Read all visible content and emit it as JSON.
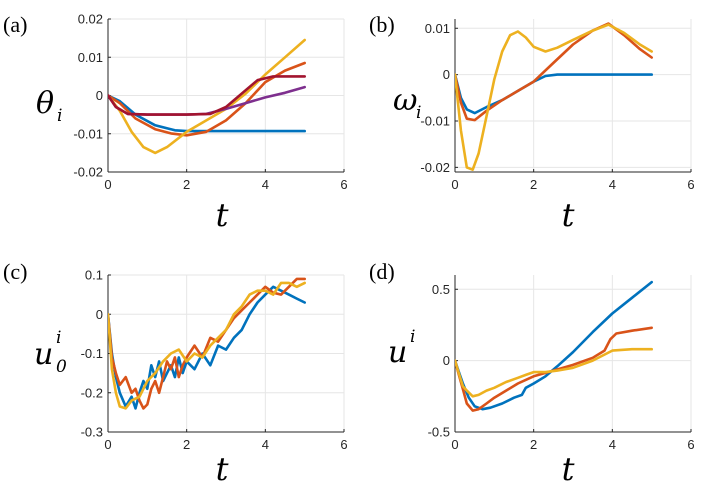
{
  "figure": {
    "panels": [
      {
        "letter": "(a)",
        "ylabel": "θ",
        "ylabel_sub": "i",
        "ylabel_sup": "",
        "xlabel": "t"
      },
      {
        "letter": "(b)",
        "ylabel": "ω",
        "ylabel_sub": "i",
        "ylabel_sup": "",
        "xlabel": "t"
      },
      {
        "letter": "(c)",
        "ylabel": "u",
        "ylabel_sub": "0",
        "ylabel_sup": "i",
        "xlabel": "t"
      },
      {
        "letter": "(d)",
        "ylabel": "u",
        "ylabel_sub": "",
        "ylabel_sup": "i",
        "xlabel": "t"
      }
    ]
  },
  "chart_data": [
    {
      "type": "line",
      "title": "",
      "xlabel": "t",
      "ylabel": "θ_i",
      "xlim": [
        0,
        6
      ],
      "ylim": [
        -0.02,
        0.02
      ],
      "xticks": [
        0,
        2,
        4,
        6
      ],
      "xtick_labels": [
        "0",
        "2",
        "4",
        "6"
      ],
      "yticks": [
        -0.02,
        -0.01,
        0,
        0.01,
        0.02
      ],
      "ytick_labels": [
        "-0.02",
        "-0.01",
        "0",
        "0.01",
        "0.02"
      ],
      "grid": true,
      "series": [
        {
          "name": "blue",
          "color": "#0072BD",
          "x": [
            0,
            0.3,
            0.7,
            1.2,
            1.7,
            2.0,
            2.5,
            3.0,
            4.0,
            5.0
          ],
          "y": [
            0,
            -0.0015,
            -0.005,
            -0.0078,
            -0.0091,
            -0.0093,
            -0.0093,
            -0.0093,
            -0.0093,
            -0.0093
          ]
        },
        {
          "name": "red",
          "color": "#D95319",
          "x": [
            0,
            0.3,
            0.7,
            1.2,
            1.6,
            2.0,
            2.5,
            3.0,
            3.5,
            4.0,
            4.5,
            5.0
          ],
          "y": [
            0,
            -0.002,
            -0.006,
            -0.0088,
            -0.0099,
            -0.0104,
            -0.0095,
            -0.0065,
            -0.002,
            0.0035,
            0.0065,
            0.0085
          ]
        },
        {
          "name": "yellow",
          "color": "#EDB120",
          "x": [
            0,
            0.3,
            0.6,
            0.9,
            1.2,
            1.5,
            2.0,
            2.5,
            3.0,
            3.5,
            4.0,
            4.5,
            5.0
          ],
          "y": [
            0,
            -0.004,
            -0.0095,
            -0.0135,
            -0.015,
            -0.0135,
            -0.0095,
            -0.0065,
            -0.0035,
            0.0005,
            0.0055,
            0.01,
            0.0145
          ]
        },
        {
          "name": "purple",
          "color": "#7E2F8E",
          "x": [
            0,
            0.2,
            0.5,
            1.0,
            2.0,
            2.5,
            3.0,
            3.5,
            4.0,
            4.5,
            5.0
          ],
          "y": [
            0,
            -0.003,
            -0.0048,
            -0.005,
            -0.005,
            -0.0048,
            -0.0035,
            -0.002,
            -0.0005,
            0.0007,
            0.0022
          ]
        },
        {
          "name": "dark-red",
          "color": "#A2142F",
          "x": [
            0,
            0.2,
            0.5,
            1.0,
            2.0,
            2.6,
            3.0,
            3.4,
            3.8,
            4.2,
            5.0
          ],
          "y": [
            0,
            -0.003,
            -0.0048,
            -0.005,
            -0.005,
            -0.0048,
            -0.003,
            0.0005,
            0.004,
            0.005,
            0.005
          ]
        }
      ]
    },
    {
      "type": "line",
      "title": "",
      "xlabel": "t",
      "ylabel": "ω_i",
      "xlim": [
        0,
        6
      ],
      "ylim": [
        -0.021,
        0.012
      ],
      "xticks": [
        0,
        2,
        4,
        6
      ],
      "xtick_labels": [
        "0",
        "2",
        "4",
        "6"
      ],
      "yticks": [
        -0.02,
        -0.01,
        0,
        0.01
      ],
      "ytick_labels": [
        "-0.02",
        "-0.01",
        "0",
        "0.01"
      ],
      "grid": true,
      "series": [
        {
          "name": "blue",
          "color": "#0072BD",
          "x": [
            0,
            0.15,
            0.3,
            0.5,
            0.8,
            1.2,
            1.6,
            2.0,
            2.3,
            2.6,
            3.0,
            4.0,
            5.0
          ],
          "y": [
            0,
            -0.005,
            -0.0075,
            -0.0083,
            -0.007,
            -0.0055,
            -0.0035,
            -0.0015,
            -0.0003,
            0,
            0,
            0,
            0
          ]
        },
        {
          "name": "red",
          "color": "#D95319",
          "x": [
            0,
            0.15,
            0.3,
            0.5,
            0.8,
            1.2,
            1.6,
            2.0,
            2.5,
            3.0,
            3.5,
            3.9,
            4.3,
            4.7,
            5.0
          ],
          "y": [
            0,
            -0.006,
            -0.0095,
            -0.0098,
            -0.0078,
            -0.0055,
            -0.0035,
            -0.0015,
            0.0025,
            0.0065,
            0.0095,
            0.011,
            0.0085,
            0.0055,
            0.0037
          ]
        },
        {
          "name": "yellow",
          "color": "#EDB120",
          "x": [
            0,
            0.15,
            0.3,
            0.45,
            0.6,
            0.8,
            1.0,
            1.2,
            1.4,
            1.6,
            1.8,
            2.0,
            2.3,
            2.6,
            3.0,
            3.5,
            3.9,
            4.3,
            4.7,
            5.0
          ],
          "y": [
            0,
            -0.012,
            -0.02,
            -0.0205,
            -0.017,
            -0.009,
            -0.001,
            0.005,
            0.0085,
            0.0093,
            0.008,
            0.006,
            0.005,
            0.0058,
            0.0075,
            0.0095,
            0.0108,
            0.009,
            0.0065,
            0.005
          ]
        }
      ]
    },
    {
      "type": "line",
      "title": "",
      "xlabel": "t",
      "ylabel": "u_0^i",
      "xlim": [
        0,
        6
      ],
      "ylim": [
        -0.3,
        0.1
      ],
      "xticks": [
        0,
        2,
        4,
        6
      ],
      "xtick_labels": [
        "0",
        "2",
        "4",
        "6"
      ],
      "yticks": [
        -0.3,
        -0.2,
        -0.1,
        0,
        0.1
      ],
      "ytick_labels": [
        "-0.3",
        "-0.2",
        "-0.1",
        "0",
        "0.1"
      ],
      "grid": true,
      "series": [
        {
          "name": "blue",
          "color": "#0072BD",
          "x": [
            0,
            0.1,
            0.2,
            0.3,
            0.45,
            0.6,
            0.7,
            0.8,
            0.9,
            1.0,
            1.1,
            1.2,
            1.3,
            1.4,
            1.5,
            1.6,
            1.7,
            1.8,
            1.9,
            2.0,
            2.2,
            2.4,
            2.6,
            2.8,
            3.0,
            3.2,
            3.4,
            3.6,
            3.8,
            4.0,
            4.2,
            4.4,
            4.6,
            4.8,
            5.0
          ],
          "y": [
            0,
            -0.1,
            -0.16,
            -0.2,
            -0.235,
            -0.21,
            -0.24,
            -0.2,
            -0.17,
            -0.19,
            -0.13,
            -0.16,
            -0.12,
            -0.17,
            -0.15,
            -0.13,
            -0.16,
            -0.11,
            -0.15,
            -0.12,
            -0.14,
            -0.1,
            -0.13,
            -0.08,
            -0.09,
            -0.06,
            -0.04,
            0.0,
            0.03,
            0.05,
            0.07,
            0.06,
            0.05,
            0.04,
            0.03
          ]
        },
        {
          "name": "red",
          "color": "#D95319",
          "x": [
            0,
            0.1,
            0.2,
            0.3,
            0.45,
            0.6,
            0.7,
            0.8,
            0.9,
            1.0,
            1.1,
            1.2,
            1.3,
            1.4,
            1.5,
            1.6,
            1.7,
            1.8,
            1.9,
            2.0,
            2.2,
            2.4,
            2.6,
            2.8,
            3.0,
            3.2,
            3.4,
            3.6,
            3.8,
            4.0,
            4.2,
            4.4,
            4.6,
            4.8,
            5.0
          ],
          "y": [
            0,
            -0.11,
            -0.15,
            -0.18,
            -0.16,
            -0.2,
            -0.19,
            -0.22,
            -0.24,
            -0.23,
            -0.19,
            -0.17,
            -0.2,
            -0.16,
            -0.12,
            -0.14,
            -0.11,
            -0.16,
            -0.13,
            -0.11,
            -0.08,
            -0.11,
            -0.06,
            -0.07,
            -0.04,
            -0.01,
            0.01,
            0.03,
            0.05,
            0.07,
            0.055,
            0.05,
            0.07,
            0.09,
            0.09
          ]
        },
        {
          "name": "yellow",
          "color": "#EDB120",
          "x": [
            0,
            0.1,
            0.2,
            0.3,
            0.45,
            0.6,
            0.8,
            1.0,
            1.2,
            1.4,
            1.6,
            1.8,
            2.0,
            2.2,
            2.4,
            2.6,
            2.8,
            3.0,
            3.2,
            3.4,
            3.6,
            3.8,
            4.0,
            4.2,
            4.4,
            4.6,
            4.8,
            5.0
          ],
          "y": [
            0,
            -0.14,
            -0.2,
            -0.235,
            -0.24,
            -0.22,
            -0.21,
            -0.17,
            -0.15,
            -0.12,
            -0.1,
            -0.09,
            -0.12,
            -0.1,
            -0.11,
            -0.08,
            -0.06,
            -0.04,
            0.0,
            0.02,
            0.05,
            0.06,
            0.06,
            0.05,
            0.08,
            0.08,
            0.07,
            0.08
          ]
        }
      ]
    },
    {
      "type": "line",
      "title": "",
      "xlabel": "t",
      "ylabel": "u^i",
      "xlim": [
        0,
        6
      ],
      "ylim": [
        -0.5,
        0.6
      ],
      "xticks": [
        0,
        2,
        4,
        6
      ],
      "xtick_labels": [
        "0",
        "2",
        "4",
        "6"
      ],
      "yticks": [
        -0.5,
        0,
        0.5
      ],
      "ytick_labels": [
        "-0.5",
        "0",
        "0.5"
      ],
      "grid": true,
      "series": [
        {
          "name": "blue",
          "color": "#0072BD",
          "x": [
            0,
            0.1,
            0.2,
            0.35,
            0.5,
            0.7,
            0.9,
            1.2,
            1.5,
            1.7,
            1.8,
            2.0,
            2.3,
            2.6,
            3.0,
            3.5,
            4.0,
            4.5,
            5.0
          ],
          "y": [
            0,
            -0.08,
            -0.16,
            -0.26,
            -0.32,
            -0.34,
            -0.33,
            -0.3,
            -0.26,
            -0.24,
            -0.19,
            -0.16,
            -0.11,
            -0.04,
            0.06,
            0.2,
            0.33,
            0.44,
            0.55
          ]
        },
        {
          "name": "red",
          "color": "#D95319",
          "x": [
            0,
            0.1,
            0.2,
            0.3,
            0.45,
            0.6,
            0.8,
            1.0,
            1.3,
            1.6,
            2.0,
            2.5,
            3.0,
            3.5,
            3.8,
            3.95,
            4.1,
            4.5,
            5.0
          ],
          "y": [
            0,
            -0.1,
            -0.2,
            -0.3,
            -0.35,
            -0.34,
            -0.3,
            -0.26,
            -0.21,
            -0.16,
            -0.11,
            -0.07,
            -0.03,
            0.02,
            0.07,
            0.15,
            0.19,
            0.21,
            0.23
          ]
        },
        {
          "name": "yellow",
          "color": "#EDB120",
          "x": [
            0,
            0.1,
            0.2,
            0.3,
            0.45,
            0.6,
            0.8,
            1.0,
            1.3,
            1.6,
            1.8,
            2.0,
            2.3,
            2.6,
            3.0,
            3.5,
            4.0,
            4.5,
            5.0
          ],
          "y": [
            0,
            -0.09,
            -0.18,
            -0.21,
            -0.25,
            -0.24,
            -0.21,
            -0.19,
            -0.15,
            -0.12,
            -0.1,
            -0.08,
            -0.08,
            -0.07,
            -0.05,
            0.0,
            0.07,
            0.08,
            0.08
          ]
        }
      ]
    }
  ]
}
